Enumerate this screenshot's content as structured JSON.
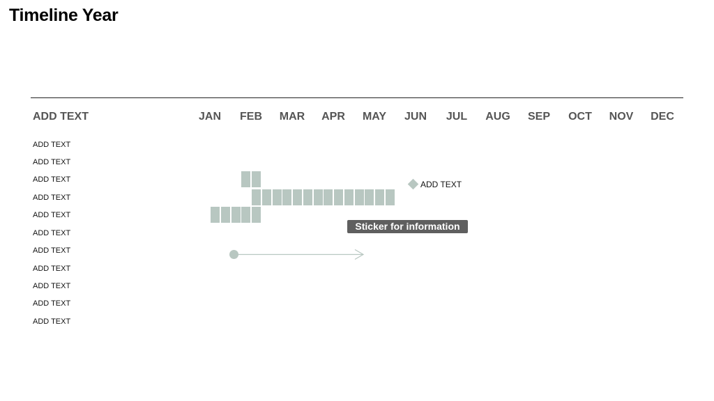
{
  "page": {
    "title": "Timeline Year"
  },
  "timeline": {
    "header_label": "ADD TEXT",
    "months": [
      "JAN",
      "FEB",
      "MAR",
      "APR",
      "MAY",
      "JUN",
      "JUL",
      "AUG",
      "SEP",
      "OCT",
      "NOV",
      "DEC"
    ],
    "rows": [
      "ADD TEXT",
      "ADD TEXT",
      "ADD TEXT",
      "ADD TEXT",
      "ADD TEXT",
      "ADD TEXT",
      "ADD TEXT",
      "ADD TEXT",
      "ADD TEXT",
      "ADD TEXT",
      "ADD TEXT"
    ],
    "milestone_label": "ADD TEXT",
    "sticker_label": "Sticker for information"
  },
  "colors": {
    "bar": "#b8c7c1",
    "sticker_bg": "#5f5f5f",
    "header_text": "#555555"
  }
}
